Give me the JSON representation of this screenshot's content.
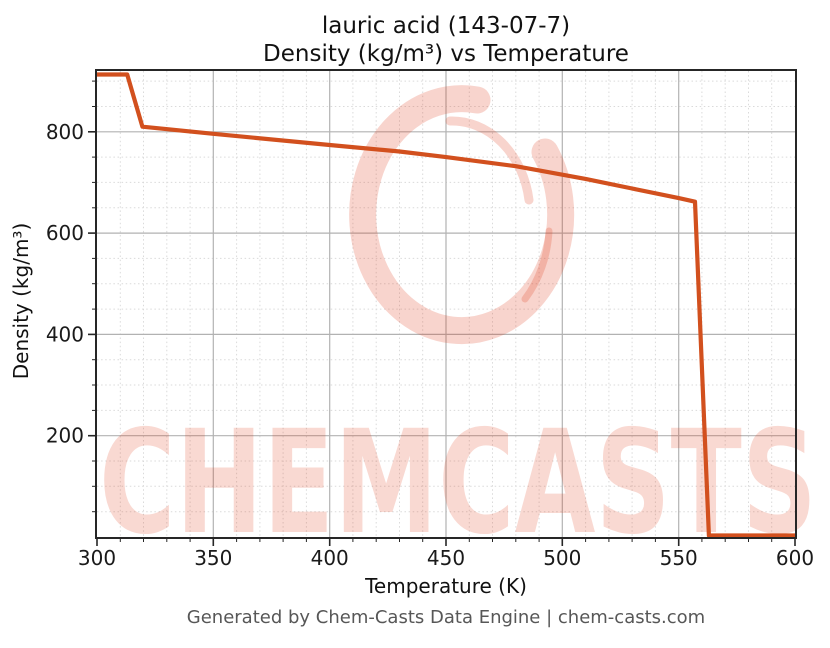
{
  "header": {
    "title_line1": "lauric acid (143-07-7)",
    "title_line2": "Density (kg/m³) vs Temperature"
  },
  "footer": {
    "text": "Generated by Chem-Casts Data Engine | chem-casts.com"
  },
  "watermark": {
    "text": "CHEMCASTS",
    "logo": "brush-circle-logo",
    "color": "#dd3311",
    "text_opacity": 0.19,
    "logo_opacity": 0.21
  },
  "chart_data": {
    "type": "line",
    "title": "lauric acid (143-07-7) — Density (kg/m³) vs Temperature",
    "xlabel": "Temperature (K)",
    "ylabel": "Density (kg/m³)",
    "xlim": [
      300,
      600
    ],
    "ylim": [
      0,
      920
    ],
    "x_major_ticks": [
      300,
      350,
      400,
      450,
      500,
      550,
      600
    ],
    "x_minor_step": 10,
    "y_major_ticks": [
      200,
      400,
      600,
      800
    ],
    "y_minor_step": 50,
    "grid": true,
    "legend": false,
    "line_color": "#d2501e",
    "major_grid_color": "#b2b2b2",
    "minor_grid_color": "#dadada",
    "series": [
      {
        "name": "density",
        "points": [
          [
            300,
            913
          ],
          [
            313,
            913
          ],
          [
            319.5,
            810
          ],
          [
            350,
            796
          ],
          [
            400,
            774
          ],
          [
            430,
            761
          ],
          [
            450,
            750
          ],
          [
            480,
            732
          ],
          [
            510,
            707
          ],
          [
            530,
            688
          ],
          [
            550,
            669
          ],
          [
            557,
            662
          ],
          [
            563,
            3
          ],
          [
            600,
            3
          ]
        ]
      }
    ]
  }
}
